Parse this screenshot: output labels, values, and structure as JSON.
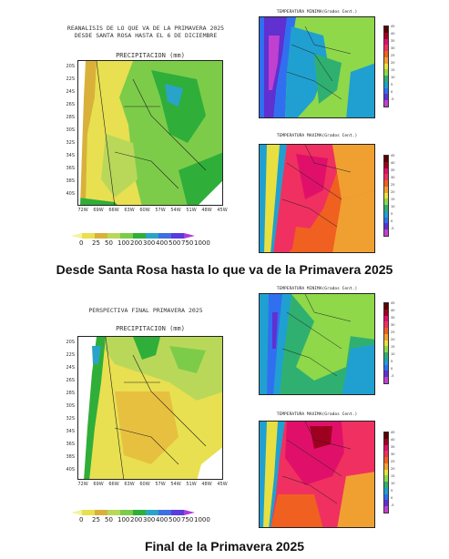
{
  "top": {
    "header_line1": "REANALISIS DE LO QUE VA DE LA PRIMAVERA 2025",
    "header_line2": "DESDE SANTA ROSA HASTA EL 6 DE DICIEMBRE",
    "precip_title": "PRECIPITACION (mm)",
    "tmin_title": "TEMPERATURA MINIMA(Grados Cent.)",
    "tmax_title": "TEMPERATURA MAXIMA(Grados Cent.)",
    "caption": "Desde Santa Rosa hasta lo que va de la Primavera 2025"
  },
  "bottom": {
    "header_line1": "PERSPECTIVA FINAL PRIMAVERA 2025",
    "precip_title": "PRECIPITACION (mm)",
    "tmin_title": "TEMPERATURA MINIMA(Grados Cent.)",
    "tmax_title": "TEMPERATURA MAXIMA(Grados Cent.)",
    "caption": "Final de la Primavera 2025"
  },
  "lat_labels": [
    "20S",
    "22S",
    "24S",
    "26S",
    "28S",
    "30S",
    "32S",
    "34S",
    "36S",
    "38S",
    "40S"
  ],
  "lon_labels": [
    "72W",
    "69W",
    "66W",
    "63W",
    "60W",
    "57W",
    "54W",
    "51W",
    "48W",
    "45W"
  ],
  "precip_scale": {
    "labels": [
      "0",
      "25",
      "50",
      "100",
      "200",
      "300",
      "400",
      "500",
      "750",
      "1000"
    ],
    "colors": [
      "#f3f3a0",
      "#e8e050",
      "#d9b13a",
      "#b9d85a",
      "#7ccc4a",
      "#2fae3a",
      "#2aa3c8",
      "#3f6fe0",
      "#5a3be0",
      "#b03ad8"
    ]
  },
  "temp_scale": {
    "labels": [
      "45",
      "40",
      "35",
      "30",
      "25",
      "20",
      "15",
      "10",
      "5",
      "0",
      "-5"
    ],
    "colors": [
      "#5a0000",
      "#a00020",
      "#e0106a",
      "#f03060",
      "#f06020",
      "#f0a030",
      "#e8e040",
      "#8ed84a",
      "#30b070",
      "#20a0d0",
      "#3070f0",
      "#6030d0",
      "#c040d0"
    ]
  },
  "icons": [
    "logo-circle-icon"
  ]
}
